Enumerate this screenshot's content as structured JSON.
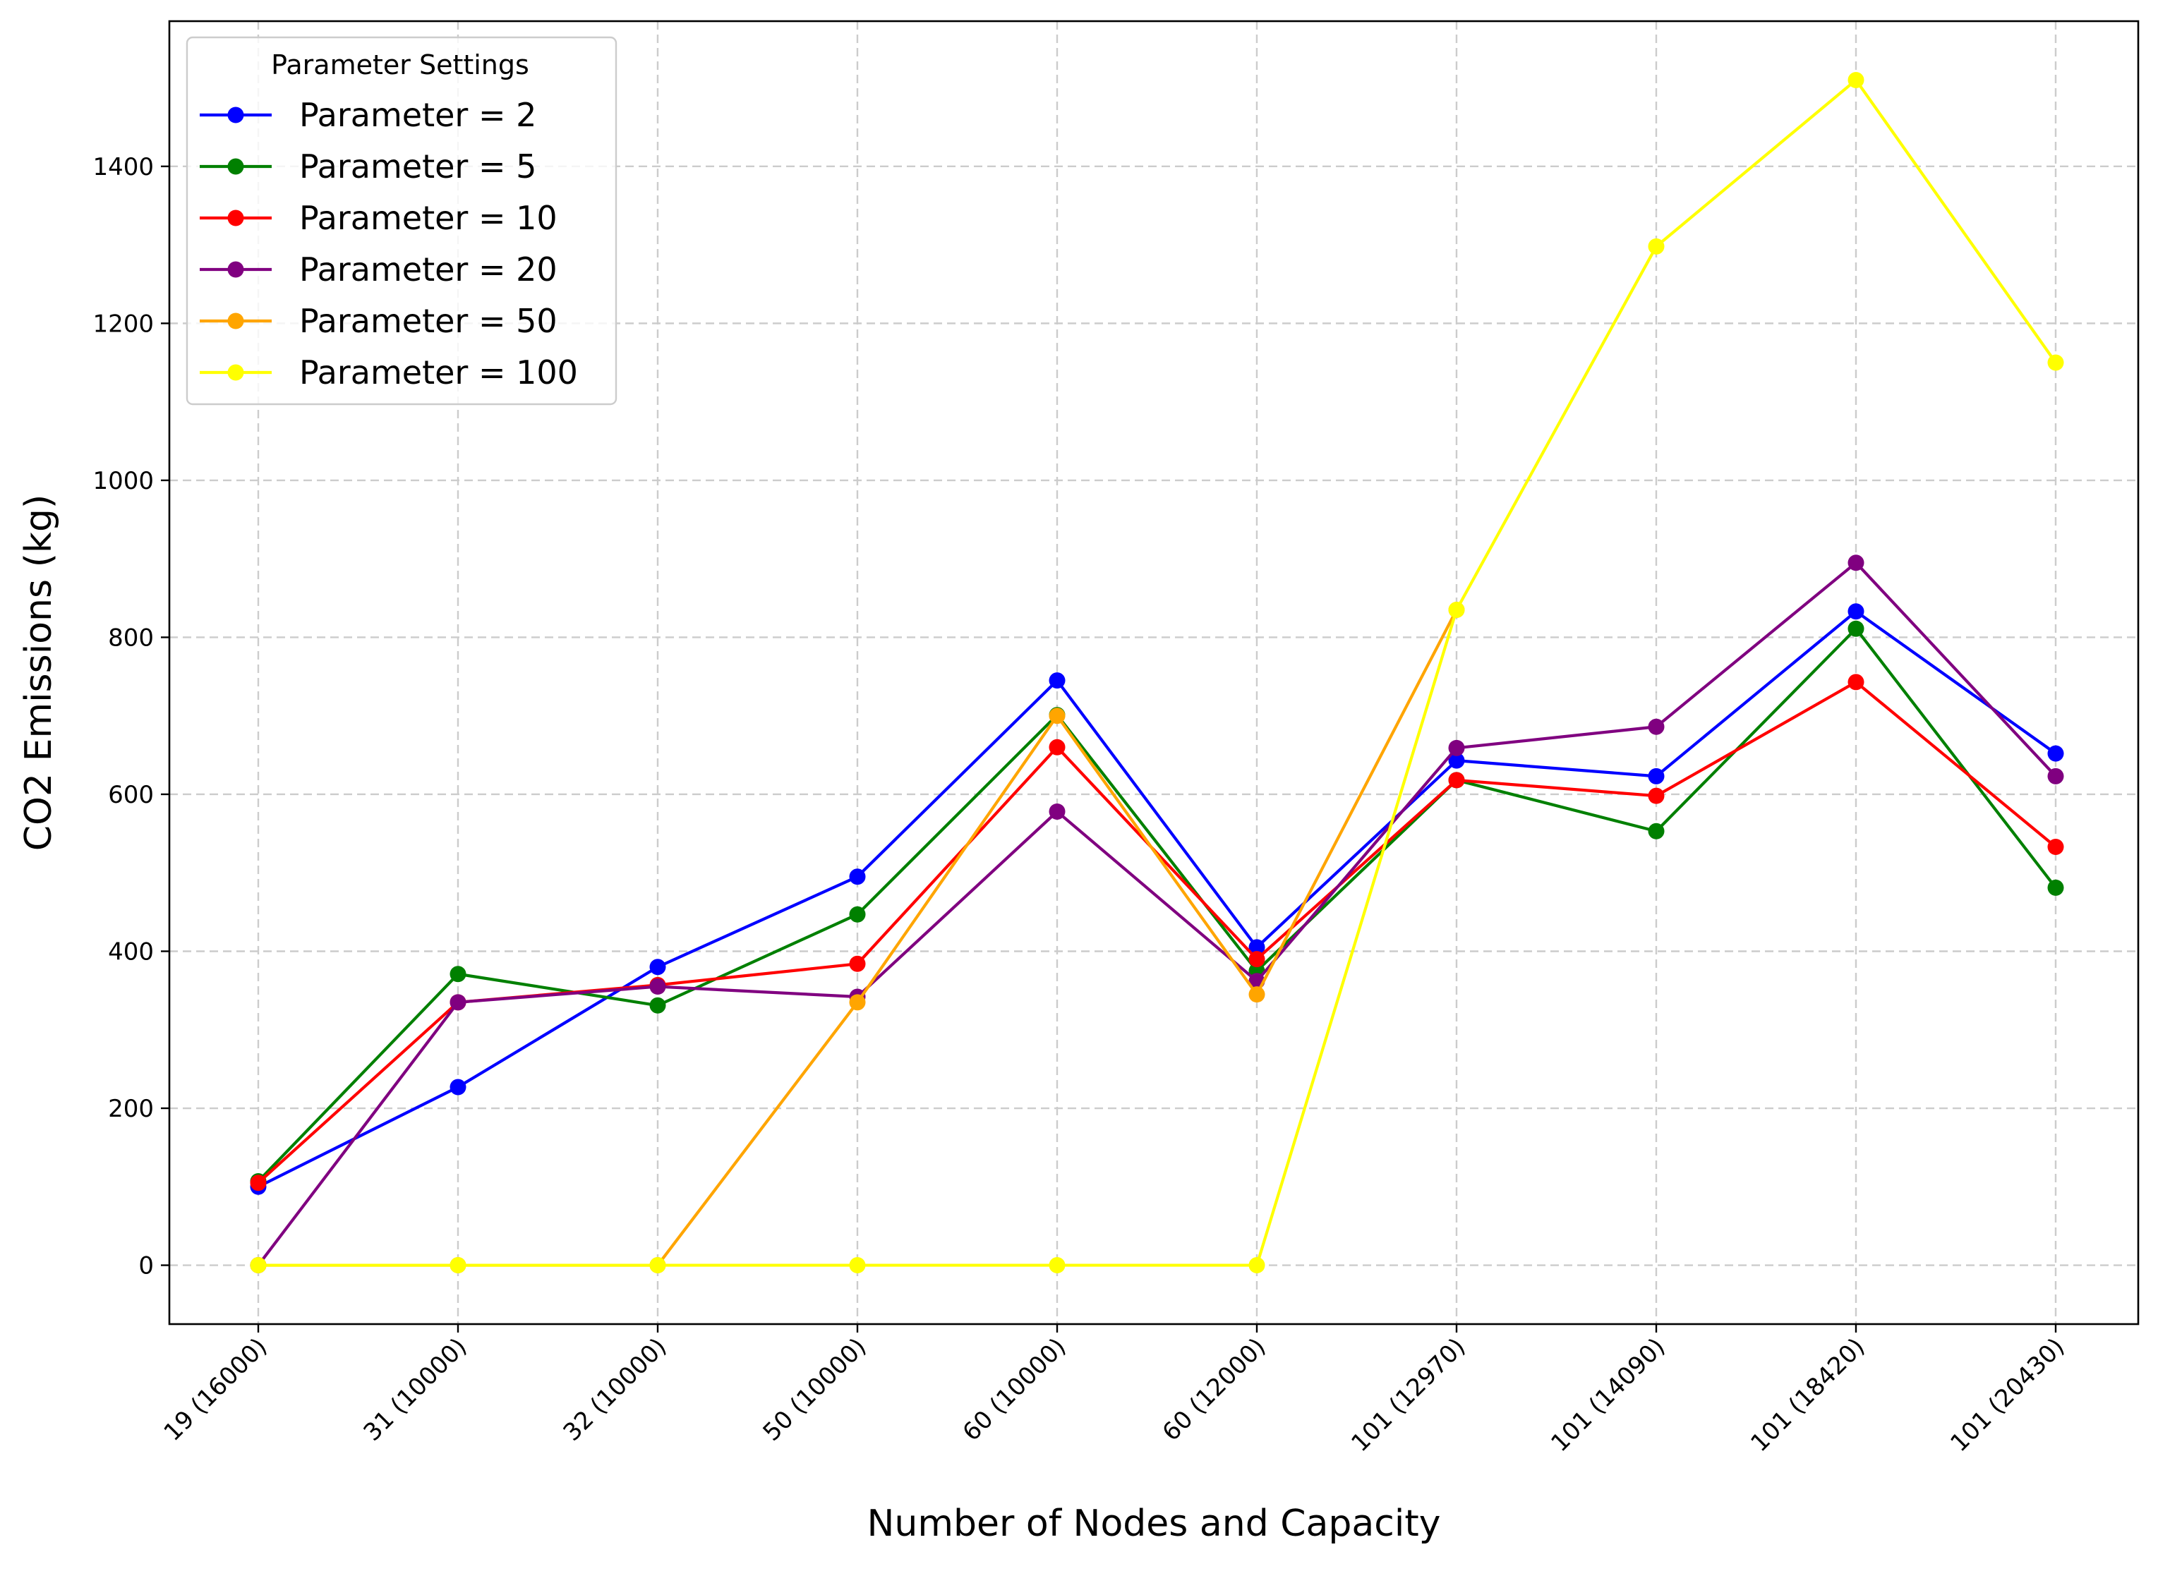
{
  "chart_data": {
    "type": "line",
    "title": "",
    "xlabel": "Number of Nodes and Capacity",
    "ylabel": "CO2 Emissions (kg)",
    "categories": [
      "19 (16000)",
      "31 (10000)",
      "32 (10000)",
      "50 (10000)",
      "60 (10000)",
      "60 (12000)",
      "101 (12970)",
      "101 (14090)",
      "101 (18420)",
      "101 (20430)"
    ],
    "ylim": [
      -75,
      1585
    ],
    "yticks": [
      0,
      200,
      400,
      600,
      800,
      1000,
      1200,
      1400
    ],
    "grid": true,
    "legend": {
      "title": "Parameter Settings",
      "placement": "upper-left"
    },
    "series": [
      {
        "name": "Parameter = 2",
        "color": "#0000ff",
        "values": [
          100,
          227,
          380,
          495,
          745,
          405,
          643,
          623,
          833,
          652
        ]
      },
      {
        "name": "Parameter = 5",
        "color": "#008000",
        "values": [
          107,
          371,
          331,
          447,
          701,
          375,
          618,
          553,
          811,
          481
        ]
      },
      {
        "name": "Parameter = 10",
        "color": "#ff0000",
        "values": [
          105,
          335,
          357,
          384,
          660,
          390,
          618,
          598,
          743,
          533
        ]
      },
      {
        "name": "Parameter = 20",
        "color": "#800080",
        "values": [
          0,
          335,
          355,
          342,
          578,
          362,
          659,
          686,
          895,
          623
        ]
      },
      {
        "name": "Parameter = 50",
        "color": "#ffa500",
        "values": [
          0,
          0,
          0,
          335,
          700,
          345,
          835,
          null,
          null,
          null
        ]
      },
      {
        "name": "Parameter = 100",
        "color": "#ffff00",
        "values": [
          0,
          0,
          0,
          0,
          0,
          0,
          835,
          1298,
          1510,
          1150
        ]
      }
    ]
  }
}
